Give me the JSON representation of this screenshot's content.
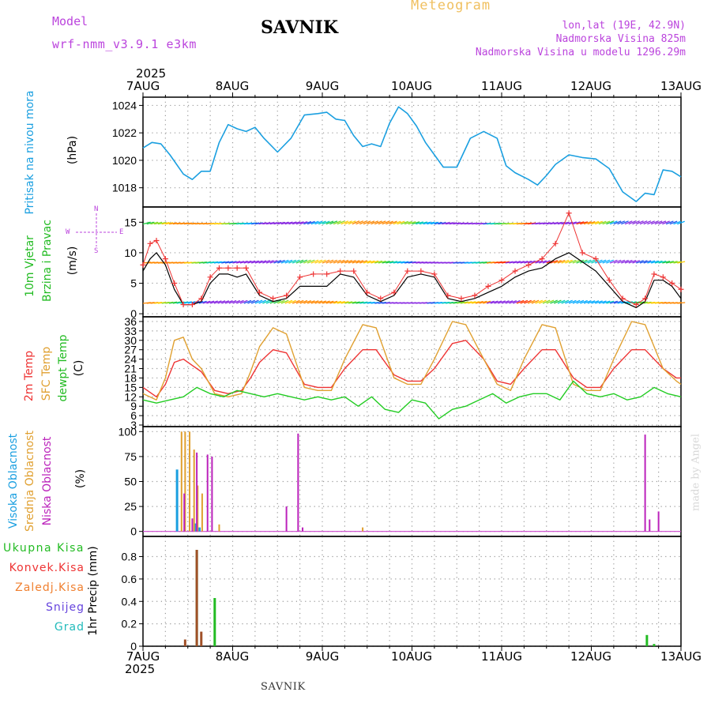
{
  "header": {
    "title": "SAVNIK",
    "model_label": "Model",
    "model_name": "wrf-nmm_v3.9.1 e3km",
    "meteogram_label": "Meteogram",
    "lonlat": "lon,lat (19E, 42.9N)",
    "altitude": "Nadmorska Visina 825m",
    "model_altitude": "Nadmorska Visina u modelu 1296.29m",
    "credit": "made by Angel",
    "footer": "SAVNIK"
  },
  "colors": {
    "pressure": "#1a9fe0",
    "temp2m": "#ee3333",
    "sfc_temp": "#e0a030",
    "dewpt": "#22cc22",
    "high_cloud": "#1a9fe0",
    "mid_cloud": "#e0a030",
    "low_cloud": "#bb22bb",
    "purple_text": "#bb44dd",
    "grid": "#999999"
  },
  "axis_dates": {
    "year": "2025",
    "labels": [
      "7AUG",
      "8AUG",
      "9AUG",
      "10AUG",
      "11AUG",
      "12AUG",
      "13AUG"
    ]
  },
  "panel_labels": {
    "pressure": [
      "Pritisak na nivou mora",
      "(hPa)"
    ],
    "wind": [
      "10m Vjetar",
      "Brzina i Pravac",
      "(m/s)"
    ],
    "compass": {
      "n": "N",
      "s": "S",
      "e": "E",
      "w": "W"
    },
    "temp": [
      "2m Temp",
      "SFC Temp",
      "dewpt Temp",
      "(C)"
    ],
    "cloud": [
      "Visoka Oblacnost",
      "Srednja Oblacnost",
      "Niska Oblacnost",
      "(%)"
    ],
    "precip_unit": "1hr Precip (mm)",
    "precip_legend": [
      "Ukupna Kisa",
      "Konvek.Kisa",
      "Zaledj.Kisa",
      "Snijeg",
      "Grad"
    ],
    "precip_legend_colors": [
      "#22bb22",
      "#ee3333",
      "#f08030",
      "#6644dd",
      "#22bbbb"
    ]
  },
  "chart_data": [
    {
      "type": "line",
      "title": "Pritisak na nivou mora",
      "ylabel": "(hPa)",
      "x_unit": "days since 7 AUG 00h",
      "ylim": [
        1016.6,
        1024.6
      ],
      "yticks": [
        1018,
        1020,
        1022,
        1024
      ],
      "series": [
        {
          "name": "Pritisak",
          "color": "#1a9fe0",
          "x": [
            0,
            0.1,
            0.2,
            0.3,
            0.45,
            0.55,
            0.65,
            0.75,
            0.85,
            0.95,
            1.05,
            1.15,
            1.25,
            1.35,
            1.5,
            1.65,
            1.8,
            1.95,
            2.05,
            2.15,
            2.25,
            2.35,
            2.45,
            2.55,
            2.65,
            2.75,
            2.85,
            2.95,
            3.05,
            3.15,
            3.25,
            3.35,
            3.5,
            3.65,
            3.8,
            3.95,
            4.05,
            4.15,
            4.3,
            4.4,
            4.5,
            4.6,
            4.75,
            4.9,
            5.05,
            5.2,
            5.35,
            5.5,
            5.6,
            5.7,
            5.8,
            5.9,
            6.0
          ],
          "y": [
            1020.9,
            1021.3,
            1021.2,
            1020.4,
            1019.0,
            1018.6,
            1019.2,
            1019.2,
            1021.3,
            1022.6,
            1022.3,
            1022.1,
            1022.4,
            1021.6,
            1020.6,
            1021.6,
            1023.3,
            1023.4,
            1023.5,
            1023.0,
            1022.9,
            1021.8,
            1021.0,
            1021.2,
            1021.0,
            1022.7,
            1023.9,
            1023.4,
            1022.5,
            1021.3,
            1020.4,
            1019.5,
            1019.5,
            1021.6,
            1022.1,
            1021.6,
            1019.6,
            1019.1,
            1018.6,
            1018.2,
            1018.9,
            1019.7,
            1020.4,
            1020.2,
            1020.1,
            1019.4,
            1017.7,
            1017.0,
            1017.6,
            1017.5,
            1019.3,
            1019.2,
            1018.8
          ]
        }
      ]
    },
    {
      "type": "line",
      "title": "10m Vjetar Brzina i Pravac",
      "ylabel": "(m/s)",
      "ylim": [
        -0.5,
        17.5
      ],
      "yticks": [
        0,
        5,
        10,
        15
      ],
      "barbs_shown": true,
      "series": [
        {
          "name": "Brzina (line)",
          "color": "#000000",
          "x": [
            0,
            0.08,
            0.15,
            0.25,
            0.35,
            0.45,
            0.55,
            0.65,
            0.75,
            0.85,
            0.95,
            1.05,
            1.15,
            1.3,
            1.45,
            1.6,
            1.75,
            1.9,
            2.05,
            2.2,
            2.35,
            2.5,
            2.65,
            2.8,
            2.95,
            3.1,
            3.25,
            3.4,
            3.55,
            3.7,
            3.85,
            4.0,
            4.15,
            4.3,
            4.45,
            4.6,
            4.75,
            4.9,
            5.05,
            5.2,
            5.35,
            5.5,
            5.6,
            5.7,
            5.8,
            5.9,
            6.0
          ],
          "y": [
            7,
            9,
            10,
            8,
            4,
            1.5,
            1.5,
            2,
            5,
            6.5,
            6.5,
            6,
            6.5,
            3,
            2,
            2.5,
            4.5,
            4.5,
            4.5,
            6.5,
            6,
            3,
            2,
            3,
            6,
            6.5,
            6,
            2.5,
            2,
            2.5,
            3.5,
            4.5,
            6,
            7,
            7.5,
            9,
            10,
            8.5,
            7,
            4.5,
            2,
            1,
            2,
            5.5,
            5.5,
            4.5,
            2.5
          ]
        },
        {
          "name": "Brzina (markers)",
          "color": "#ee3333",
          "x": [
            0,
            0.08,
            0.15,
            0.25,
            0.35,
            0.45,
            0.55,
            0.65,
            0.75,
            0.85,
            0.95,
            1.05,
            1.15,
            1.3,
            1.45,
            1.6,
            1.75,
            1.9,
            2.05,
            2.2,
            2.35,
            2.5,
            2.65,
            2.8,
            2.95,
            3.1,
            3.25,
            3.4,
            3.55,
            3.7,
            3.85,
            4.0,
            4.15,
            4.3,
            4.45,
            4.6,
            4.75,
            4.9,
            5.05,
            5.2,
            5.35,
            5.5,
            5.6,
            5.7,
            5.8,
            5.9,
            6.0
          ],
          "y": [
            8,
            11.5,
            12,
            9,
            5,
            1.5,
            1.5,
            2.5,
            6,
            7.5,
            7.5,
            7.5,
            7.5,
            3.5,
            2.5,
            3,
            6,
            6.5,
            6.5,
            7,
            7,
            3.5,
            2.5,
            3.5,
            7,
            7,
            6.5,
            3,
            2.5,
            3,
            4.5,
            5.5,
            7,
            8,
            9,
            11.5,
            16.5,
            10,
            9,
            5.5,
            2.5,
            1.5,
            2.5,
            6.5,
            6,
            5,
            4
          ]
        }
      ]
    },
    {
      "type": "line",
      "title": "2m Temp / SFC Temp / dewpt Temp",
      "ylabel": "(C)",
      "ylim": [
        2.5,
        37.5
      ],
      "yticks": [
        3,
        6,
        9,
        12,
        15,
        18,
        21,
        24,
        27,
        30,
        33,
        36
      ],
      "series": [
        {
          "name": "2m Temp",
          "color": "#ee3333",
          "x": [
            0,
            0.15,
            0.25,
            0.35,
            0.45,
            0.55,
            0.65,
            0.8,
            0.95,
            1.1,
            1.2,
            1.3,
            1.45,
            1.6,
            1.8,
            1.95,
            2.1,
            2.25,
            2.45,
            2.6,
            2.8,
            2.95,
            3.1,
            3.25,
            3.45,
            3.6,
            3.8,
            3.95,
            4.1,
            4.25,
            4.45,
            4.6,
            4.8,
            4.95,
            5.1,
            5.25,
            5.45,
            5.6,
            5.8,
            5.95,
            6.0
          ],
          "y": [
            15,
            12,
            16,
            23,
            24,
            22,
            20,
            14,
            13,
            14,
            18,
            23,
            27,
            26,
            16,
            15,
            15,
            21,
            27,
            27,
            19,
            17,
            17,
            21,
            29,
            30,
            24,
            17,
            16,
            21,
            27,
            27,
            18,
            15,
            15,
            21,
            27,
            27,
            21,
            18,
            18
          ]
        },
        {
          "name": "SFC Temp",
          "color": "#e0a030",
          "x": [
            0,
            0.15,
            0.25,
            0.35,
            0.45,
            0.55,
            0.65,
            0.8,
            0.95,
            1.1,
            1.2,
            1.3,
            1.45,
            1.6,
            1.8,
            1.95,
            2.1,
            2.25,
            2.45,
            2.6,
            2.8,
            2.95,
            3.1,
            3.25,
            3.45,
            3.6,
            3.8,
            3.95,
            4.1,
            4.25,
            4.45,
            4.6,
            4.8,
            4.95,
            5.1,
            5.25,
            5.45,
            5.6,
            5.8,
            5.95,
            6.0
          ],
          "y": [
            13,
            11,
            18,
            30,
            31,
            24,
            21,
            13,
            12,
            13,
            20,
            28,
            34,
            32,
            15,
            14,
            14,
            24,
            35,
            34,
            18,
            16,
            16,
            24,
            36,
            35,
            24,
            16,
            14,
            24,
            35,
            34,
            16,
            14,
            14,
            24,
            36,
            35,
            21,
            17,
            16
          ]
        },
        {
          "name": "dewpt Temp",
          "color": "#22cc22",
          "x": [
            0,
            0.15,
            0.3,
            0.45,
            0.6,
            0.75,
            0.9,
            1.05,
            1.2,
            1.35,
            1.5,
            1.65,
            1.8,
            1.95,
            2.1,
            2.25,
            2.4,
            2.55,
            2.7,
            2.85,
            3.0,
            3.15,
            3.3,
            3.45,
            3.6,
            3.75,
            3.9,
            4.05,
            4.2,
            4.35,
            4.5,
            4.65,
            4.8,
            4.95,
            5.1,
            5.25,
            5.4,
            5.55,
            5.7,
            5.85,
            6.0
          ],
          "y": [
            11,
            10,
            11,
            12,
            15,
            13,
            12,
            14,
            13,
            12,
            13,
            12,
            11,
            12,
            11,
            12,
            9,
            12,
            8,
            7,
            11,
            10,
            5,
            8,
            9,
            11,
            13,
            10,
            12,
            13,
            13,
            11,
            17,
            13,
            12,
            13,
            11,
            12,
            15,
            13,
            12
          ]
        }
      ]
    },
    {
      "type": "bar",
      "title": "Oblacnost",
      "ylabel": "(%)",
      "ylim": [
        -5,
        105
      ],
      "yticks": [
        0,
        25,
        50,
        75,
        100
      ],
      "series": [
        {
          "name": "Visoka Oblacnost",
          "color": "#1a9fe0",
          "x": [
            0.38,
            0.59,
            0.63
          ],
          "values": [
            62,
            8,
            4
          ]
        },
        {
          "name": "Srednja Oblacnost",
          "color": "#e0a030",
          "x": [
            0.43,
            0.47,
            0.52,
            0.57,
            0.61,
            0.66,
            0.85,
            2.45
          ],
          "values": [
            100,
            100,
            100,
            82,
            46,
            38,
            7,
            4
          ]
        },
        {
          "name": "Niska Oblacnost",
          "color": "#bb22bb",
          "x": [
            0.46,
            0.55,
            0.6,
            0.72,
            0.77,
            1.6,
            1.73,
            1.78,
            5.6,
            5.65,
            5.75
          ],
          "values": [
            38,
            13,
            79,
            77,
            75,
            25,
            98,
            4,
            97,
            12,
            20
          ]
        }
      ]
    },
    {
      "type": "bar",
      "title": "1hr Precip",
      "ylabel": "1hr Precip (mm)",
      "ylim": [
        0,
        0.98
      ],
      "yticks": [
        0,
        0.2,
        0.4,
        0.6,
        0.8
      ],
      "series": [
        {
          "name": "Ukupna Kisa",
          "color": "#22bb22",
          "x": [
            0.6,
            0.8,
            5.62,
            5.7
          ],
          "values": [
            0.86,
            0.43,
            0.1,
            0.02
          ]
        },
        {
          "name": "Konvek.Kisa",
          "color": "#a05028",
          "x": [
            0.47,
            0.6,
            0.65
          ],
          "values": [
            0.06,
            0.86,
            0.13
          ]
        },
        {
          "name": "Zaledj.Kisa",
          "color": "#f08030",
          "x": [],
          "values": []
        },
        {
          "name": "Snijeg",
          "color": "#6644dd",
          "x": [],
          "values": []
        },
        {
          "name": "Grad",
          "color": "#22bbbb",
          "x": [],
          "values": []
        }
      ]
    }
  ]
}
